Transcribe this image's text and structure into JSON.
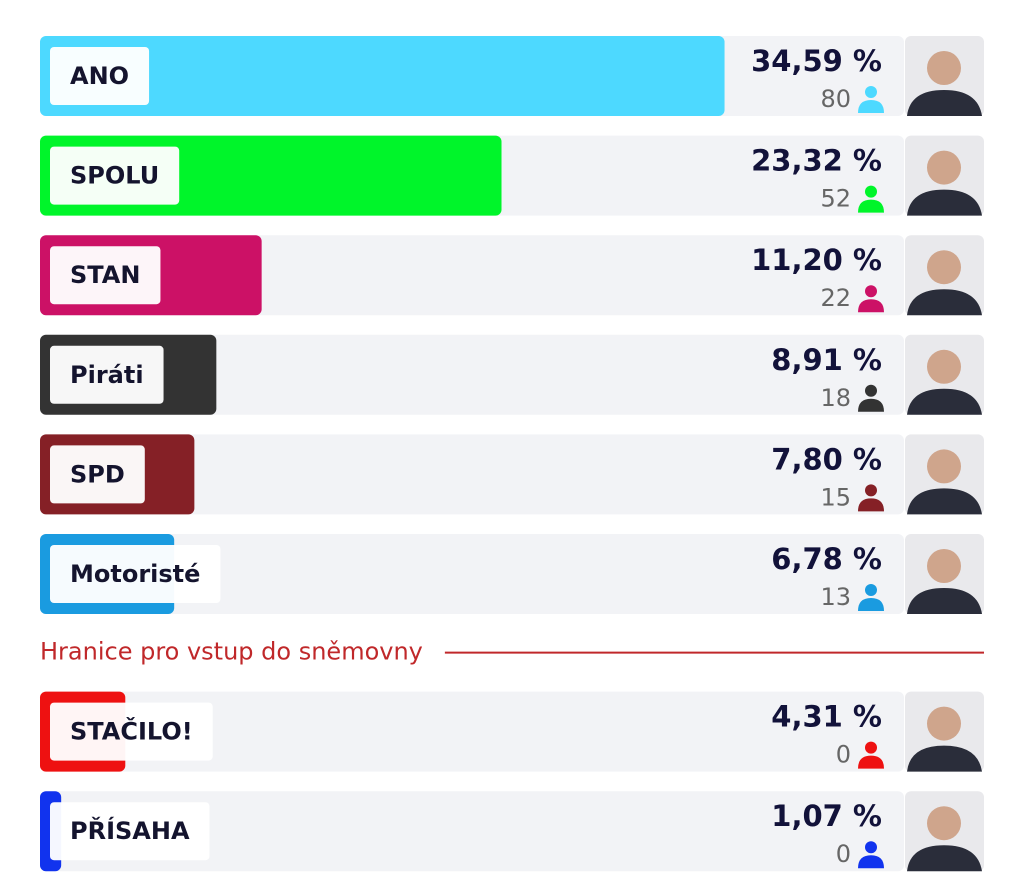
{
  "chart_data": {
    "type": "bar",
    "categories": [
      "ANO",
      "SPOLU",
      "STAN",
      "Piráti",
      "SPD",
      "Motoristé",
      "STAČILO!",
      "PŘÍSAHA"
    ],
    "values": [
      34.59,
      23.32,
      11.2,
      8.91,
      7.8,
      6.78,
      4.31,
      1.07
    ],
    "value_labels": [
      "34,59 %",
      "23,32 %",
      "11,20 %",
      "8,91 %",
      "7,80 %",
      "6,78 %",
      "4,31 %",
      "1,07 %"
    ],
    "seats": [
      80,
      52,
      22,
      18,
      15,
      13,
      0,
      0
    ],
    "colors": [
      "#4dd9ff",
      "#00f52a",
      "#cc1166",
      "#333333",
      "#852026",
      "#1a9be0",
      "#ee1111",
      "#1133ee"
    ],
    "xlim": [
      0,
      47.7
    ],
    "annotation": "Hranice pro vstup do sněmovny",
    "annotation_color": "#c0282a"
  }
}
